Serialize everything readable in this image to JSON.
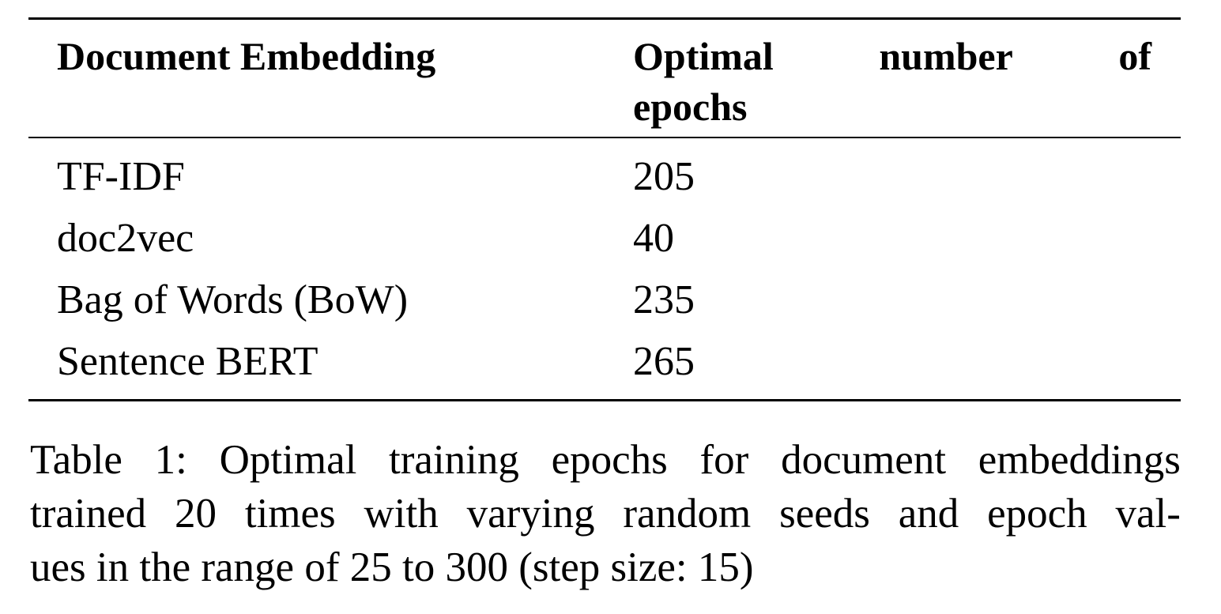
{
  "table": {
    "headers": {
      "col1": "Document Embedding",
      "col2_words_line1": [
        "Optimal",
        "number",
        "of"
      ],
      "col2_line2": "epochs"
    },
    "rows": [
      {
        "embedding": "TF-IDF",
        "epochs": "205"
      },
      {
        "embedding": "doc2vec",
        "epochs": "40"
      },
      {
        "embedding": "Bag of Words (BoW)",
        "epochs": "235"
      },
      {
        "embedding": "Sentence BERT",
        "epochs": "265"
      }
    ]
  },
  "caption": {
    "line1_words": [
      "Table",
      "1:",
      "Optimal",
      "training",
      "epochs",
      "for",
      "document",
      "embeddings"
    ],
    "line2_words": [
      "trained",
      "20",
      "times",
      "with",
      "varying",
      "random",
      "seeds",
      "and",
      "epoch",
      "val-"
    ],
    "line3": "ues in the range of 25 to 300 (step size: 15)"
  }
}
